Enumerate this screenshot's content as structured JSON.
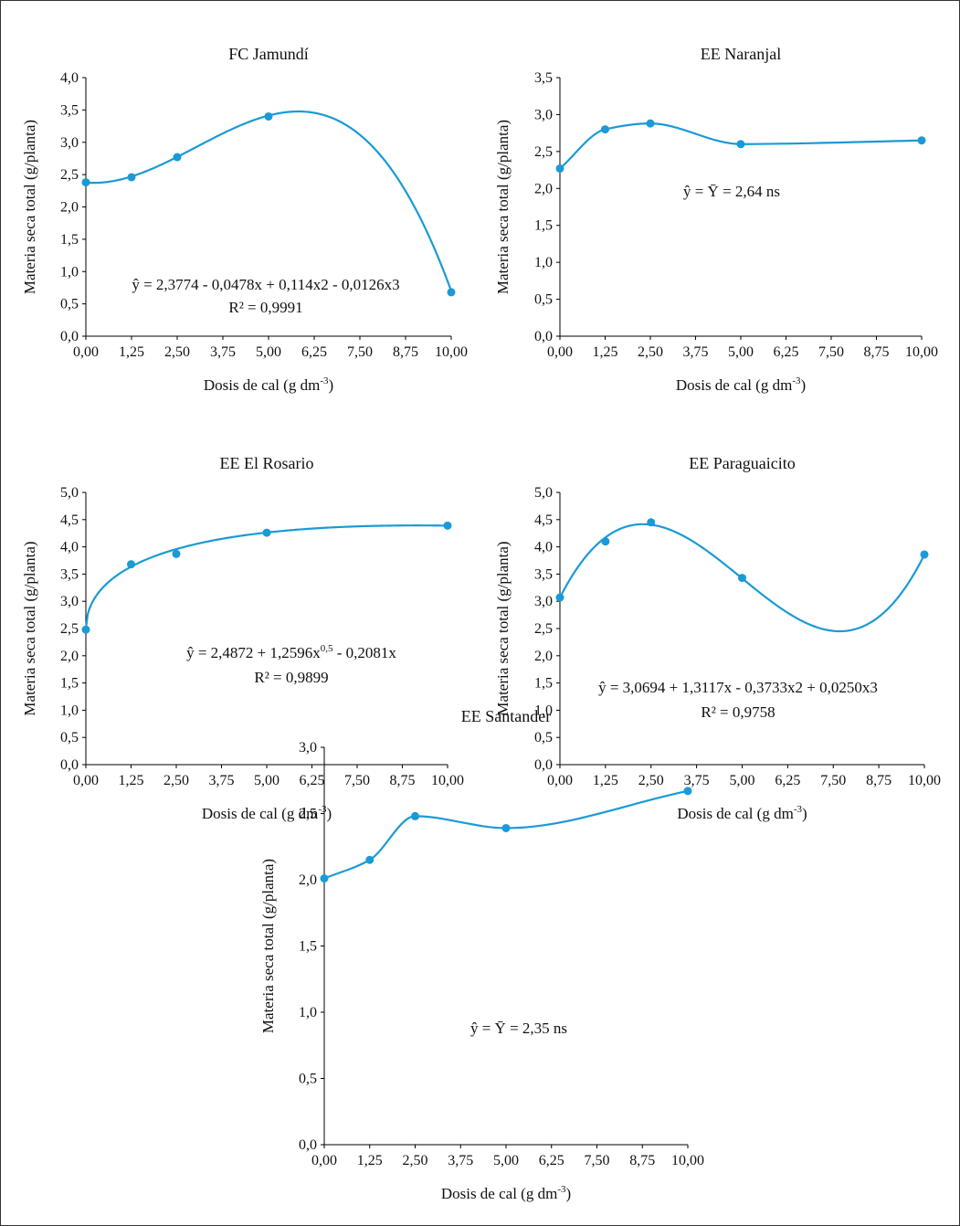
{
  "chart_data": [
    {
      "type": "scatter",
      "title": "FC Jamundí",
      "xlabel": "Dosis de cal (g dm",
      "xlabel_sup": "-3",
      "xlabel_end": ")",
      "ylabel": "Materia seca total (g/planta)",
      "xticks": [
        "0,00",
        "1,25",
        "2,50",
        "3,75",
        "5,00",
        "6,25",
        "7,50",
        "8,75",
        "10,00"
      ],
      "yticks": [
        "0,0",
        "0,5",
        "1,0",
        "1,5",
        "2,0",
        "2,5",
        "3,0",
        "3,5",
        "4,0"
      ],
      "xlim": [
        0,
        10
      ],
      "ylim": [
        0,
        4
      ],
      "x": [
        0,
        1.25,
        2.5,
        5,
        10
      ],
      "y": [
        2.38,
        2.46,
        2.77,
        3.4,
        0.68
      ],
      "fit": {
        "kind": "cubic",
        "coef": [
          2.3774,
          -0.0478,
          0.114,
          -0.0126
        ]
      },
      "equation": "ŷ = 2,3774 - 0,0478x + 0,114x2 - 0,0126x3",
      "equation_sup": "",
      "equation_end": "",
      "r2": "R² = 0,9991"
    },
    {
      "type": "scatter",
      "title": "EE Naranjal",
      "xlabel": "Dosis de cal (g dm",
      "xlabel_sup": "-3",
      "xlabel_end": ")",
      "ylabel": "Materia seca total (g/planta)",
      "xticks": [
        "0,00",
        "1,25",
        "2,50",
        "3,75",
        "5,00",
        "6,25",
        "7,50",
        "8,75",
        "10,00"
      ],
      "yticks": [
        "0,0",
        "0,5",
        "1,0",
        "1,5",
        "2,0",
        "2,5",
        "3,0",
        "3,5"
      ],
      "xlim": [
        0,
        10
      ],
      "ylim": [
        0,
        3.5
      ],
      "x": [
        0,
        1.25,
        2.5,
        5,
        10
      ],
      "y": [
        2.27,
        2.8,
        2.88,
        2.6,
        2.65
      ],
      "fit": {
        "kind": "smooth"
      },
      "equation": "ŷ = Ȳ = 2,64 ns",
      "equation_sup": "",
      "equation_end": "",
      "r2": ""
    },
    {
      "type": "scatter",
      "title": "EE El Rosario",
      "xlabel": "Dosis de cal (g dm",
      "xlabel_sup": "-3",
      "xlabel_end": ")",
      "ylabel": "Materia seca total (g/planta)",
      "xticks": [
        "0,00",
        "1,25",
        "2,50",
        "3,75",
        "5,00",
        "6,25",
        "7,50",
        "8,75",
        "10,00"
      ],
      "yticks": [
        "0,0",
        "0,5",
        "1,0",
        "1,5",
        "2,0",
        "2,5",
        "3,0",
        "3,5",
        "4,0",
        "4,5",
        "5,0"
      ],
      "xlim": [
        0,
        10
      ],
      "ylim": [
        0,
        5
      ],
      "x": [
        0,
        1.25,
        2.5,
        5,
        10
      ],
      "y": [
        2.48,
        3.68,
        3.87,
        4.26,
        4.39
      ],
      "fit": {
        "kind": "sqrt",
        "coef": [
          2.4872,
          1.2596,
          -0.2081
        ]
      },
      "equation": "ŷ = 2,4872 + 1,2596x",
      "equation_sup": "0,5",
      "equation_end": " - 0,2081x",
      "r2": "R² = 0,9899"
    },
    {
      "type": "scatter",
      "title": "EE Paraguaicito",
      "xlabel": "Dosis de cal (g dm",
      "xlabel_sup": "-3",
      "xlabel_end": ")",
      "ylabel": "Materia seca total (g/planta)",
      "xticks": [
        "0,00",
        "1,25",
        "2,50",
        "3,75",
        "5,00",
        "6,25",
        "7,50",
        "8,75",
        "10,00"
      ],
      "yticks": [
        "0,0",
        "0,5",
        "1,0",
        "1,5",
        "2,0",
        "2,5",
        "3,0",
        "3,5",
        "4,0",
        "4,5",
        "5,0"
      ],
      "xlim": [
        0,
        10
      ],
      "ylim": [
        0,
        5
      ],
      "x": [
        0,
        1.25,
        2.5,
        5,
        10
      ],
      "y": [
        3.07,
        4.1,
        4.45,
        3.43,
        3.86
      ],
      "fit": {
        "kind": "cubic",
        "coef": [
          3.0694,
          1.3117,
          -0.3733,
          0.025
        ]
      },
      "equation": "ŷ = 3,0694 + 1,3117x - 0,3733x2 + 0,0250x3",
      "equation_sup": "",
      "equation_end": "",
      "r2": "R² = 0,9758"
    },
    {
      "type": "scatter",
      "title": "EE Santander",
      "xlabel": "Dosis de cal (g dm",
      "xlabel_sup": "-3",
      "xlabel_end": ")",
      "ylabel": "Materia seca total (g/planta)",
      "xticks": [
        "0,00",
        "1,25",
        "2,50",
        "3,75",
        "5,00",
        "6,25",
        "7,50",
        "8,75",
        "10,00"
      ],
      "yticks": [
        "0,0",
        "0,5",
        "1,0",
        "1,5",
        "2,0",
        "2,5",
        "3,0"
      ],
      "xlim": [
        0,
        10
      ],
      "ylim": [
        0,
        3
      ],
      "x": [
        0,
        1.25,
        2.5,
        5,
        10
      ],
      "y": [
        2.01,
        2.15,
        2.48,
        2.39,
        2.67
      ],
      "fit": {
        "kind": "smooth"
      },
      "equation": "ŷ = Ȳ = 2,35 ns",
      "equation_sup": "",
      "equation_end": "",
      "r2": ""
    }
  ],
  "colors": {
    "series": "#1a9ad6",
    "axis": "#000000",
    "text": "#111111"
  }
}
